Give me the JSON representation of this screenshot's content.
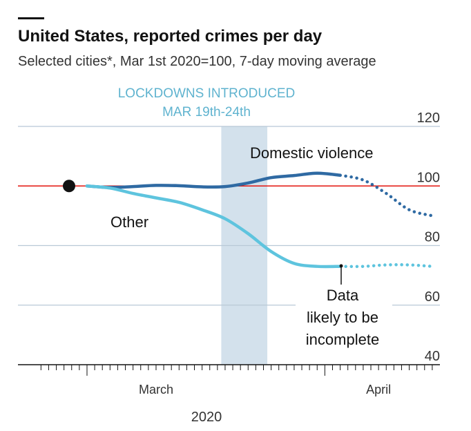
{
  "header": {
    "title": "United States, reported crimes per day",
    "subtitle": "Selected cities*, Mar 1st 2020=100, 7-day moving average"
  },
  "annotations": {
    "band_line1": "LOCKDOWNS INTRODUCED",
    "band_line2": "MAR 19th-24th",
    "incomplete_line1": "Data",
    "incomplete_line2": "likely to be",
    "incomplete_line3": "incomplete"
  },
  "colors": {
    "domestic": "#2f6aa3",
    "other": "#5ec4de",
    "baseline": "#e3120b",
    "band": "#d3e1ec",
    "grid": "#b8c8d6",
    "band_label": "#5fb3cf"
  },
  "chart_data": {
    "type": "line",
    "title": "United States, reported crimes per day",
    "subtitle": "Selected cities*, Mar 1st 2020=100, 7-day moving average",
    "x_unit": "day (2020)",
    "xlim": [
      "2020-02-21",
      "2020-04-16"
    ],
    "ylim": [
      40,
      120
    ],
    "yticks": [
      120,
      100,
      80,
      60,
      40
    ],
    "x_labels": [
      {
        "label": "March",
        "date": "2020-03-01"
      },
      {
        "label": "April",
        "date": "2020-04-01"
      }
    ],
    "year_label": "2020",
    "baseline": 100,
    "grid": true,
    "shaded_period": {
      "start": "2020-03-19",
      "end": "2020-03-24"
    },
    "x": [
      "2020-03-01",
      "2020-03-04",
      "2020-03-07",
      "2020-03-10",
      "2020-03-13",
      "2020-03-16",
      "2020-03-19",
      "2020-03-22",
      "2020-03-25",
      "2020-03-28",
      "2020-03-31",
      "2020-04-03",
      "2020-04-06",
      "2020-04-09",
      "2020-04-12",
      "2020-04-15"
    ],
    "series": [
      {
        "name": "Domestic violence",
        "values": [
          100.0,
          99.5,
          99.8,
          100.2,
          100.1,
          99.7,
          99.8,
          101.0,
          102.8,
          103.5,
          104.3,
          103.6,
          102.0,
          97.5,
          92.0,
          90.0
        ],
        "complete_through": "2020-04-03"
      },
      {
        "name": "Other",
        "values": [
          100.0,
          99.3,
          97.5,
          96.0,
          94.5,
          92.0,
          89.0,
          84.0,
          78.0,
          74.0,
          73.0,
          73.0,
          73.0,
          73.5,
          73.5,
          73.0
        ],
        "complete_through": "2020-04-03"
      }
    ]
  }
}
